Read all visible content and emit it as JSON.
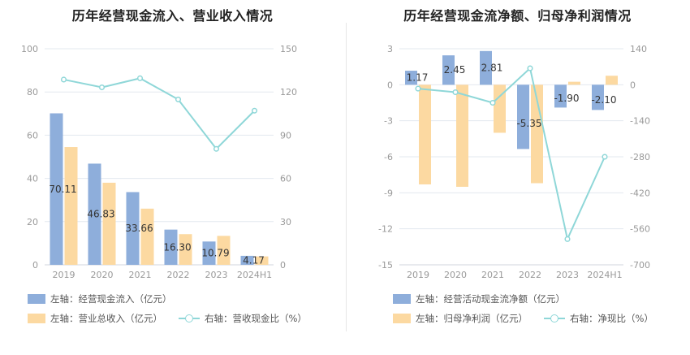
{
  "colors": {
    "bar1": "#8eaedb",
    "bar2": "#fcd9a1",
    "line": "#8fd7d8",
    "grid": "#e3e8ef",
    "axis_text": "#999999",
    "label_text": "#333333"
  },
  "chart_data": [
    {
      "type": "bar",
      "title": "历年经营现金流入、营业收入情况",
      "categories": [
        "2019",
        "2020",
        "2021",
        "2022",
        "2023",
        "2024H1"
      ],
      "series": [
        {
          "name": "左轴：经营现金流入（亿元）",
          "axis": "left",
          "kind": "bar",
          "values": [
            70.11,
            46.83,
            33.66,
            16.3,
            10.79,
            4.17
          ],
          "labels": [
            "70.11",
            "46.83",
            "33.66",
            "16.30",
            "10.79",
            "4.17"
          ]
        },
        {
          "name": "左轴：营业总收入（亿元）",
          "axis": "left",
          "kind": "bar",
          "values": [
            54.5,
            38.0,
            26.0,
            14.2,
            13.4,
            3.9
          ]
        },
        {
          "name": "右轴：营收现金比（%）",
          "axis": "right",
          "kind": "line",
          "values": [
            128.6,
            123.2,
            129.5,
            114.8,
            80.5,
            107.0
          ]
        }
      ],
      "y_left": {
        "min": 0,
        "max": 100,
        "ticks": [
          "0",
          "20",
          "40",
          "60",
          "80",
          "100"
        ]
      },
      "y_right": {
        "min": 0,
        "max": 150,
        "ticks": [
          "0",
          "30",
          "60",
          "90",
          "120",
          "150"
        ]
      },
      "grid": true,
      "legend_position": "bottom"
    },
    {
      "type": "bar",
      "title": "历年经营现金流净额、归母净利润情况",
      "categories": [
        "2019",
        "2020",
        "2021",
        "2022",
        "2023",
        "2024H1"
      ],
      "series": [
        {
          "name": "左轴：经营活动现金流净额（亿元）",
          "axis": "left",
          "kind": "bar",
          "values": [
            1.17,
            2.45,
            2.81,
            -5.35,
            -1.9,
            -2.1
          ],
          "labels": [
            "1.17",
            "2.45",
            "2.81",
            "-5.35",
            "-1.90",
            "-2.10"
          ]
        },
        {
          "name": "左轴：归母净利润（亿元）",
          "axis": "left",
          "kind": "bar",
          "values": [
            -8.3,
            -8.5,
            -4.0,
            -8.2,
            0.25,
            0.75
          ]
        },
        {
          "name": "右轴：净现比（%）",
          "axis": "right",
          "kind": "line",
          "values": [
            -15,
            -29,
            -70,
            64,
            -600,
            -280
          ]
        }
      ],
      "y_left": {
        "min": -15,
        "max": 3,
        "ticks": [
          "-15",
          "-12",
          "-9",
          "-6",
          "-3",
          "0",
          "3"
        ]
      },
      "y_right": {
        "min": -700,
        "max": 140,
        "ticks": [
          "-700",
          "-560",
          "-420",
          "-280",
          "-140",
          "0",
          "140"
        ]
      },
      "grid": true,
      "legend_position": "bottom"
    }
  ]
}
